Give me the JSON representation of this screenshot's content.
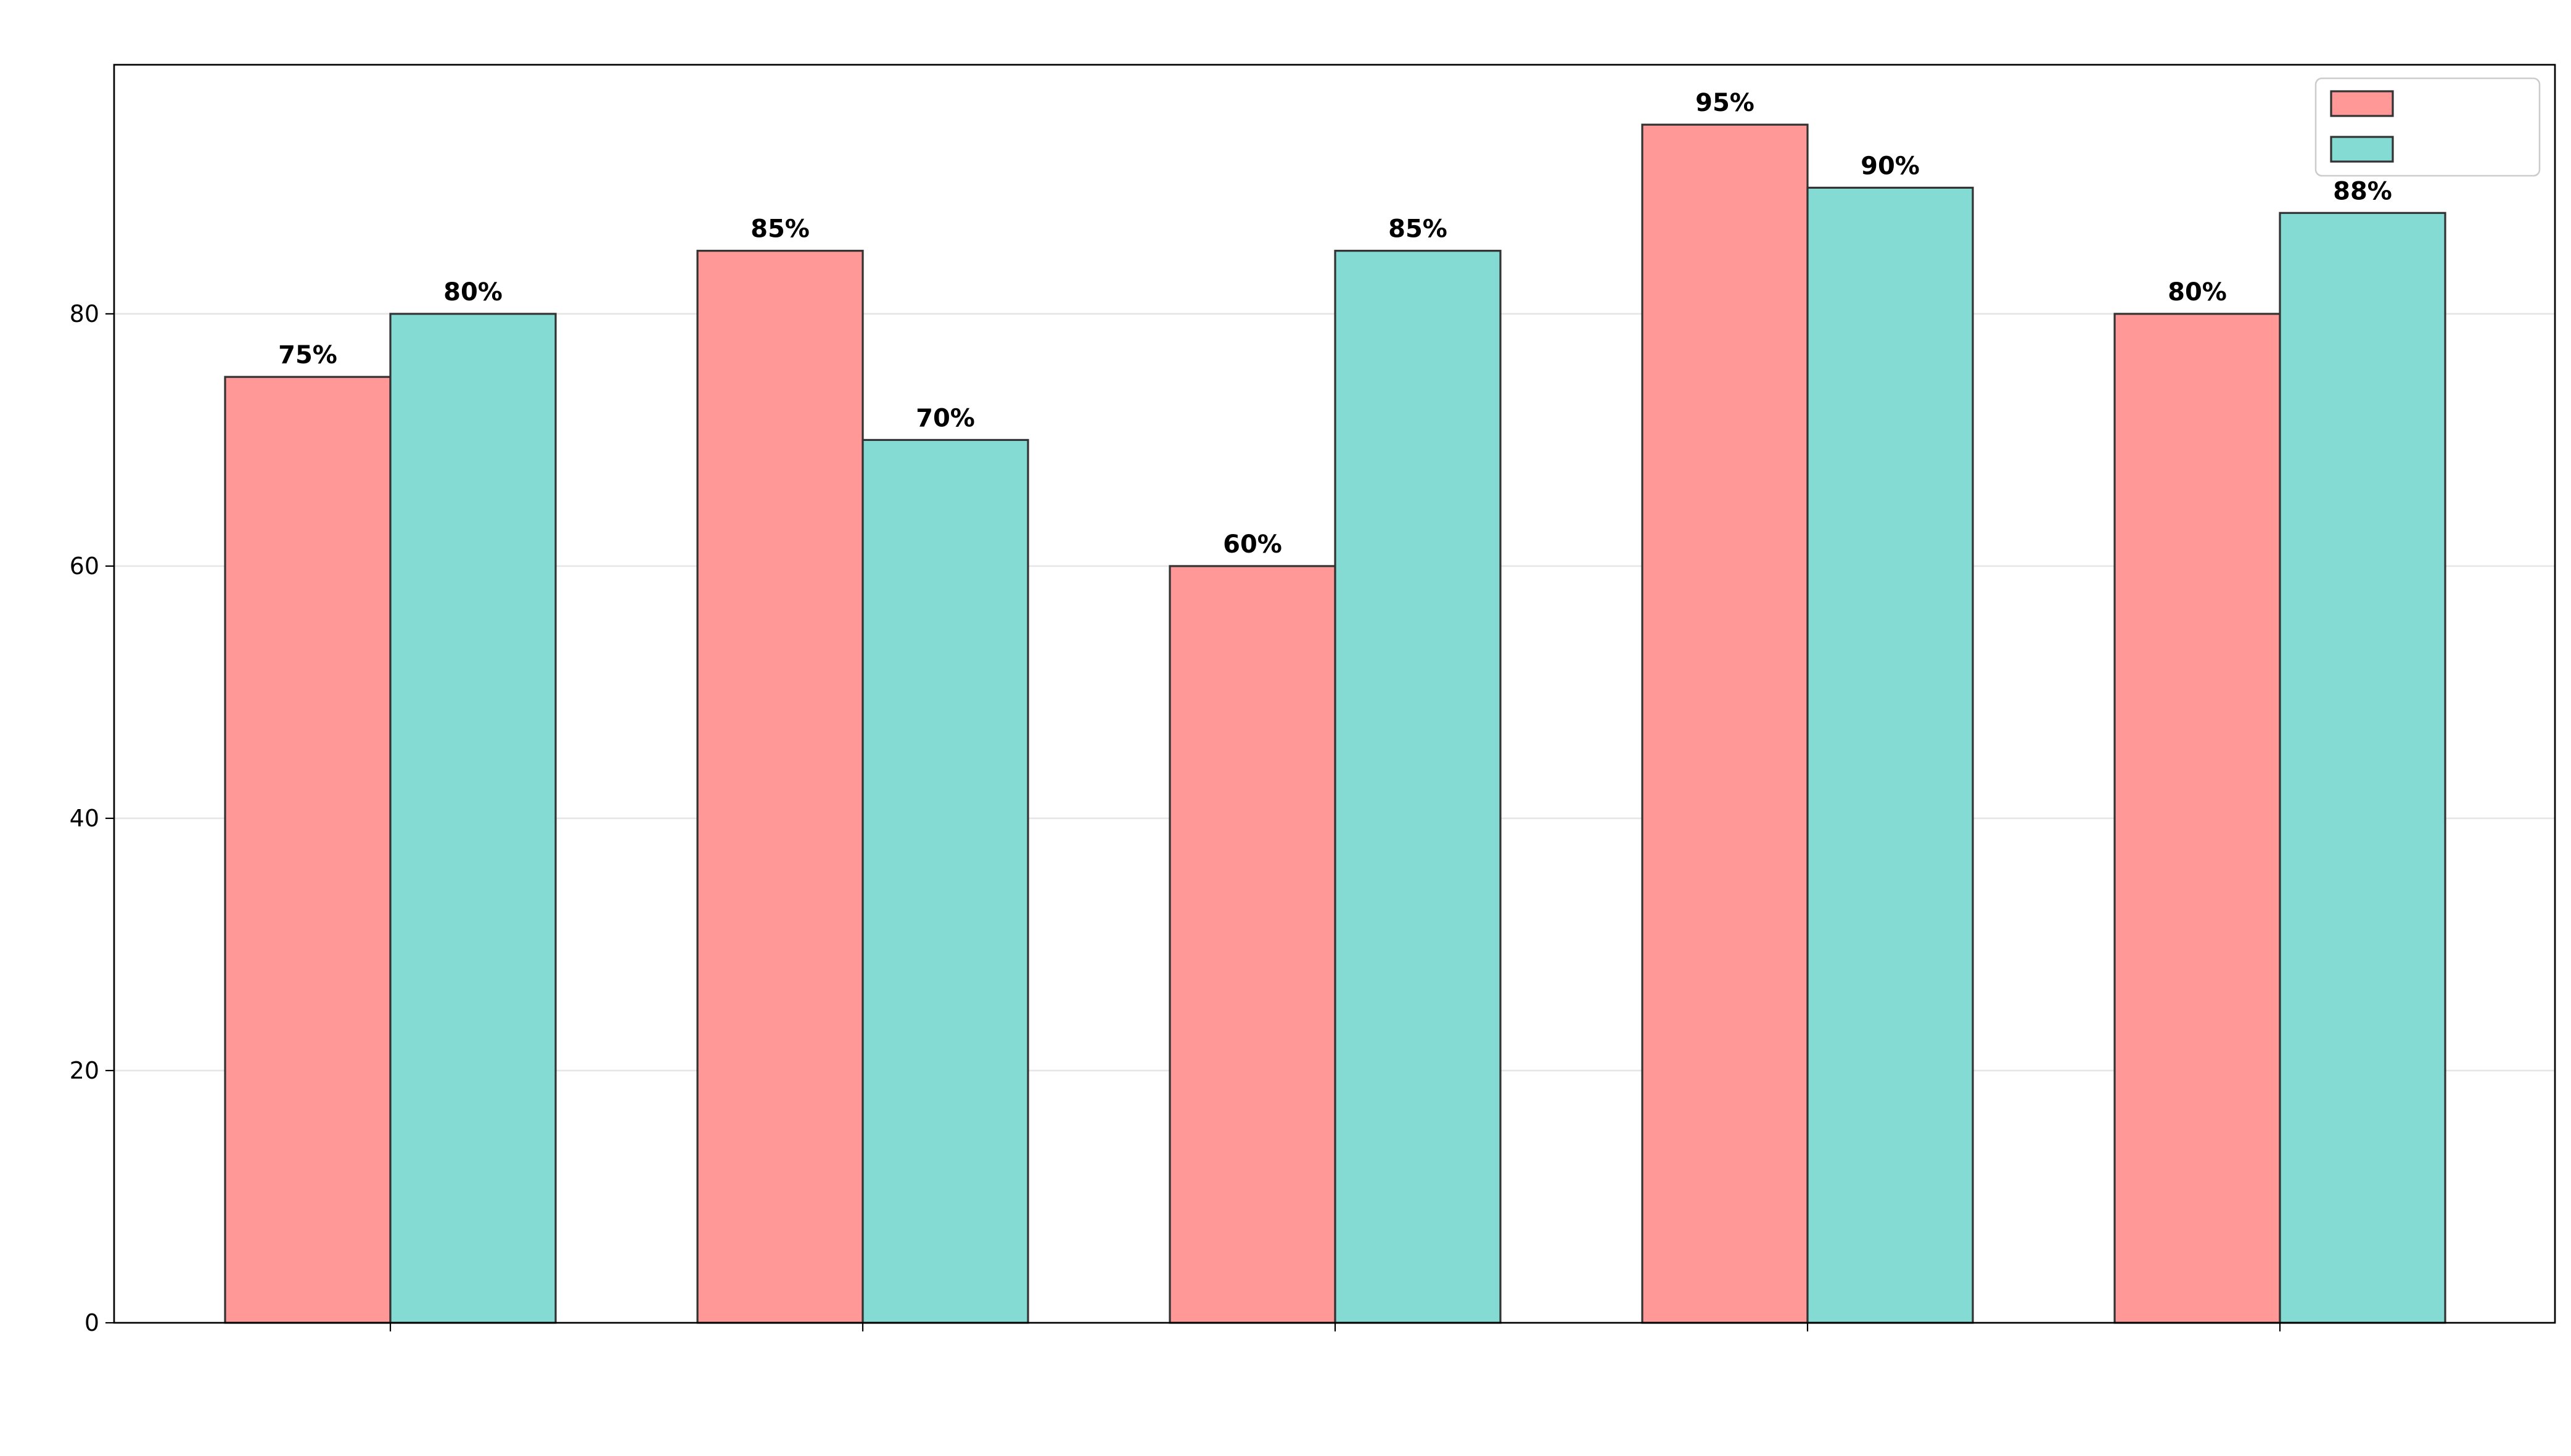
{
  "chart_data": {
    "type": "bar",
    "title": "",
    "xlabel": "",
    "ylabel": "",
    "categories": [
      {
        "label_lines": [
          "",
          ""
        ]
      },
      {
        "label_lines": [
          "",
          ""
        ]
      },
      {
        "label_lines": [
          "",
          ""
        ]
      },
      {
        "label_lines": [
          "",
          ""
        ]
      },
      {
        "label_lines": [
          "",
          ""
        ]
      }
    ],
    "series": [
      {
        "name": "",
        "color": "#ff9896",
        "values": [
          75,
          85,
          60,
          95,
          80
        ]
      },
      {
        "name": "",
        "color": "#83dbd4",
        "values": [
          80,
          70,
          85,
          90,
          88
        ]
      }
    ],
    "value_suffix": "%",
    "ylim": [
      0,
      99.75
    ],
    "yticks": [
      0,
      20,
      40,
      60,
      80
    ],
    "grid": "horizontal",
    "legend_position": "top-right"
  }
}
